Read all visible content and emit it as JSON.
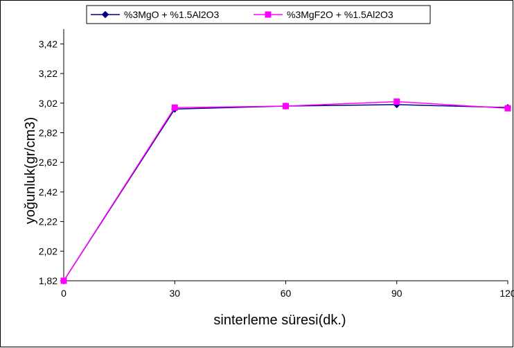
{
  "chart_data": {
    "type": "line",
    "title": "",
    "xlabel": "sinterleme süresi(dk.)",
    "ylabel": "yoğunluk(gr/cm3)",
    "x": [
      0,
      30,
      60,
      90,
      120
    ],
    "x_tick_labels": [
      "0",
      "30",
      "60",
      "90",
      "120"
    ],
    "xlim": [
      0,
      120
    ],
    "ylim": [
      1.82,
      3.52
    ],
    "y_ticks": [
      1.82,
      2.02,
      2.22,
      2.42,
      2.62,
      2.82,
      3.02,
      3.22,
      3.42
    ],
    "y_tick_labels": [
      "1,82",
      "2,02",
      "2,22",
      "2,42",
      "2,62",
      "2,82",
      "3,02",
      "3,22",
      "3,42"
    ],
    "grid": false,
    "legend_position": "top",
    "series": [
      {
        "name": "%3MgO + %1.5Al2O3",
        "values": [
          1.82,
          2.98,
          3.0,
          3.01,
          2.99
        ],
        "color": "#000080",
        "marker": "diamond"
      },
      {
        "name": "%3MgF2O + %1.5Al2O3",
        "values": [
          1.82,
          2.99,
          3.0,
          3.03,
          2.985
        ],
        "color": "#FF00FF",
        "marker": "square"
      }
    ]
  }
}
